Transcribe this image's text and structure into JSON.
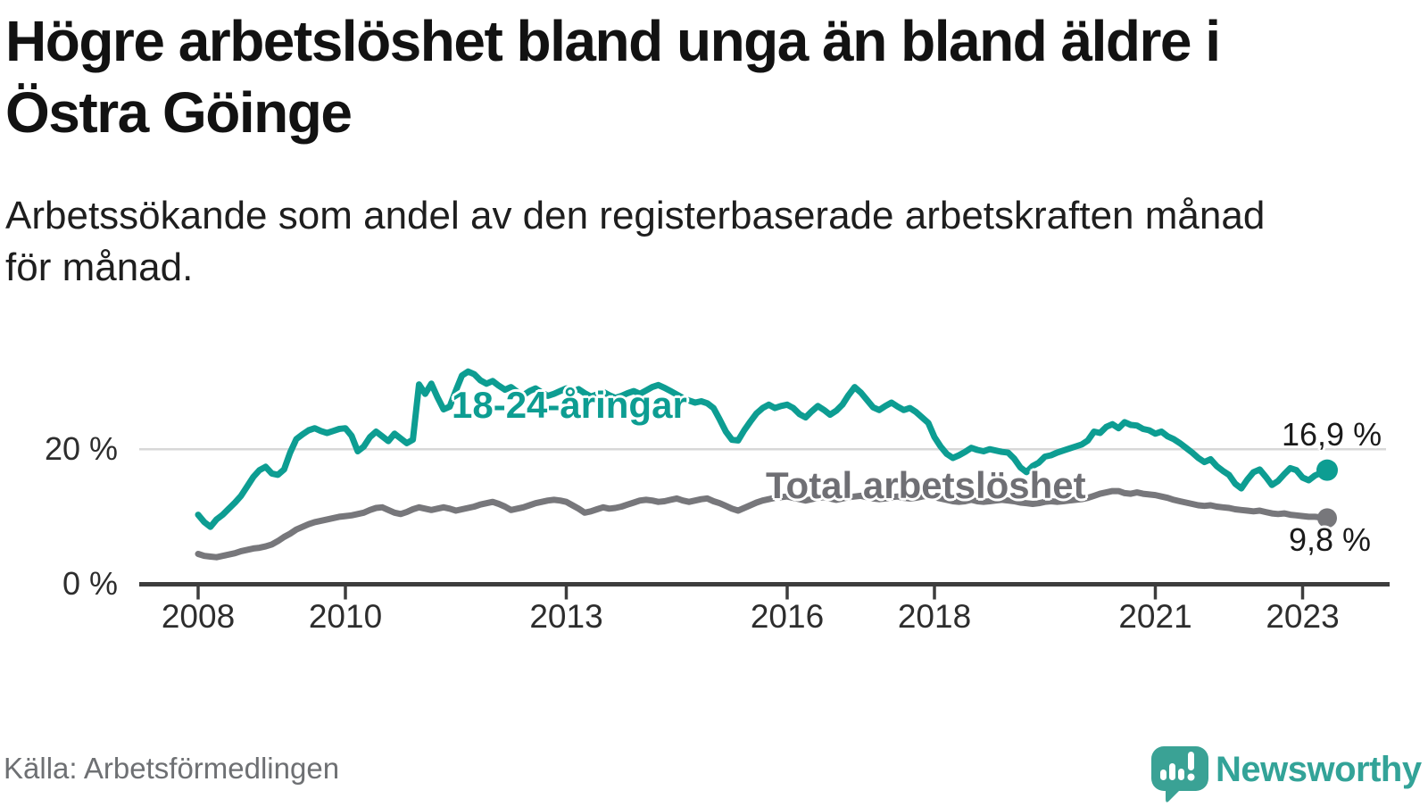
{
  "title": {
    "lines": [
      "Högre arbetslöshet bland unga än bland äldre i",
      "Östra Göinge"
    ]
  },
  "subtitle": {
    "lines": [
      "Arbetssökande som andel av den registerbaserade arbetskraften månad",
      "för månad."
    ]
  },
  "source": "Källa: Arbetsförmedlingen",
  "brand": {
    "name": "Newsworthy",
    "icon": "newsworthy-chart-bubble-icon",
    "icon_color": "#3aa295",
    "text_color": "#33a398"
  },
  "colors": {
    "youth_line": "#0d9d92",
    "total_line": "#77777b",
    "gridline": "#d8d8d8",
    "axis": "#3d3d3d",
    "value_labels": "#1a1a1a"
  },
  "chart_data": {
    "type": "line",
    "title": "Högre arbetslöshet bland unga än bland äldre i Östra Göinge",
    "subtitle": "Arbetssökande som andel av den registerbaserade arbetskraften månad för månad.",
    "unit": "%",
    "grid": "horizontal-only",
    "x_axis": {
      "range_years": [
        2007.75,
        2023.85
      ],
      "ticks": [
        {
          "year": 2008,
          "label": "2008"
        },
        {
          "year": 2010,
          "label": "2010"
        },
        {
          "year": 2013,
          "label": "2013"
        },
        {
          "year": 2016,
          "label": "2016"
        },
        {
          "year": 2018,
          "label": "2018"
        },
        {
          "year": 2021,
          "label": "2021"
        },
        {
          "year": 2023,
          "label": "2023"
        }
      ]
    },
    "y_axis": {
      "range": [
        0,
        33
      ],
      "ticks": [
        {
          "value": 20,
          "label": "20 %"
        },
        {
          "value": 0,
          "label": "0 %"
        }
      ]
    },
    "start": "2008-01",
    "end": "2023-05",
    "points_per_year": 12,
    "series": [
      {
        "name": "18-24-åringar",
        "color": "#0d9d92",
        "end_value": 16.9,
        "end_label": "16,9 %",
        "values": [
          10.3,
          9.2,
          8.5,
          9.6,
          10.3,
          11.2,
          12.1,
          13.1,
          14.5,
          15.9,
          16.9,
          17.4,
          16.4,
          16.2,
          17.0,
          19.5,
          21.5,
          22.2,
          22.8,
          23.1,
          22.7,
          22.4,
          22.7,
          23.0,
          23.1,
          22.0,
          19.7,
          20.4,
          21.8,
          22.6,
          21.9,
          21.2,
          22.3,
          21.6,
          20.9,
          21.4,
          29.6,
          28.2,
          29.7,
          27.7,
          25.9,
          26.3,
          28.7,
          30.9,
          31.5,
          31.1,
          30.2,
          29.7,
          30.1,
          29.4,
          28.8,
          29.2,
          28.5,
          28.0,
          28.6,
          29.0,
          28.4,
          27.9,
          28.2,
          28.6,
          29.0,
          28.5,
          28.9,
          28.3,
          27.8,
          28.1,
          28.5,
          28.0,
          27.6,
          27.9,
          28.3,
          28.6,
          28.2,
          28.7,
          29.2,
          29.5,
          29.1,
          28.6,
          28.1,
          27.6,
          27.2,
          26.9,
          27.1,
          26.8,
          26.1,
          24.4,
          22.6,
          21.4,
          21.3,
          22.8,
          24.1,
          25.3,
          26.1,
          26.6,
          26.1,
          26.4,
          26.6,
          26.1,
          25.2,
          24.7,
          25.6,
          26.4,
          25.8,
          25.1,
          25.7,
          26.6,
          28.0,
          29.2,
          28.4,
          27.3,
          26.2,
          25.8,
          26.4,
          26.9,
          26.3,
          25.8,
          26.1,
          25.5,
          24.7,
          23.9,
          21.8,
          20.4,
          19.3,
          18.7,
          19.1,
          19.6,
          20.2,
          19.9,
          19.7,
          20.0,
          19.8,
          19.6,
          19.5,
          18.6,
          17.3,
          16.6,
          17.5,
          18.0,
          18.9,
          19.1,
          19.5,
          19.8,
          20.1,
          20.4,
          20.7,
          21.3,
          22.6,
          22.4,
          23.3,
          23.7,
          23.1,
          24.0,
          23.6,
          23.5,
          23.0,
          22.8,
          22.3,
          22.6,
          21.9,
          21.5,
          20.9,
          20.2,
          19.5,
          18.7,
          18.1,
          18.5,
          17.5,
          16.8,
          16.2,
          14.9,
          14.2,
          15.5,
          16.6,
          17.0,
          15.9,
          14.7,
          15.3,
          16.3,
          17.2,
          16.9,
          15.8,
          15.4,
          16.1,
          16.5,
          16.9
        ]
      },
      {
        "name": "Total arbetslöshet",
        "color": "#77777b",
        "end_value": 9.8,
        "end_label": "9,8 %",
        "values": [
          4.5,
          4.2,
          4.1,
          4.0,
          4.2,
          4.4,
          4.6,
          4.9,
          5.1,
          5.3,
          5.4,
          5.6,
          5.9,
          6.4,
          7.0,
          7.5,
          8.1,
          8.5,
          8.9,
          9.2,
          9.4,
          9.6,
          9.8,
          10.0,
          10.1,
          10.2,
          10.4,
          10.6,
          11.0,
          11.3,
          11.4,
          11.0,
          10.6,
          10.4,
          10.7,
          11.1,
          11.4,
          11.2,
          11.0,
          11.2,
          11.4,
          11.2,
          10.9,
          11.1,
          11.3,
          11.5,
          11.8,
          12.0,
          12.2,
          11.9,
          11.5,
          11.0,
          11.2,
          11.4,
          11.7,
          12.0,
          12.2,
          12.4,
          12.5,
          12.4,
          12.2,
          11.7,
          11.2,
          10.6,
          10.8,
          11.1,
          11.4,
          11.2,
          11.3,
          11.5,
          11.8,
          12.1,
          12.4,
          12.5,
          12.4,
          12.2,
          12.3,
          12.5,
          12.7,
          12.4,
          12.2,
          12.4,
          12.6,
          12.7,
          12.3,
          12.0,
          11.6,
          11.2,
          10.9,
          11.3,
          11.7,
          12.1,
          12.4,
          12.6,
          12.8,
          12.9,
          13.0,
          12.8,
          12.6,
          12.4,
          12.6,
          12.8,
          12.9,
          12.7,
          12.5,
          12.7,
          12.9,
          13.0,
          13.1,
          12.9,
          12.7,
          12.6,
          12.7,
          12.9,
          13.0,
          12.8,
          12.7,
          12.8,
          13.0,
          13.1,
          12.9,
          12.7,
          12.5,
          12.3,
          12.2,
          12.3,
          12.5,
          12.3,
          12.2,
          12.3,
          12.4,
          12.5,
          12.4,
          12.3,
          12.1,
          12.0,
          11.9,
          12.0,
          12.2,
          12.3,
          12.2,
          12.3,
          12.4,
          12.5,
          12.6,
          12.8,
          13.1,
          13.4,
          13.6,
          13.8,
          13.8,
          13.5,
          13.4,
          13.6,
          13.4,
          13.3,
          13.2,
          13.0,
          12.8,
          12.5,
          12.3,
          12.1,
          11.9,
          11.7,
          11.6,
          11.7,
          11.5,
          11.4,
          11.3,
          11.1,
          11.0,
          10.9,
          10.8,
          10.9,
          10.7,
          10.5,
          10.4,
          10.5,
          10.3,
          10.2,
          10.1,
          10.0,
          10.0,
          9.9,
          9.8
        ]
      }
    ],
    "legend_position": "inline-labels"
  }
}
